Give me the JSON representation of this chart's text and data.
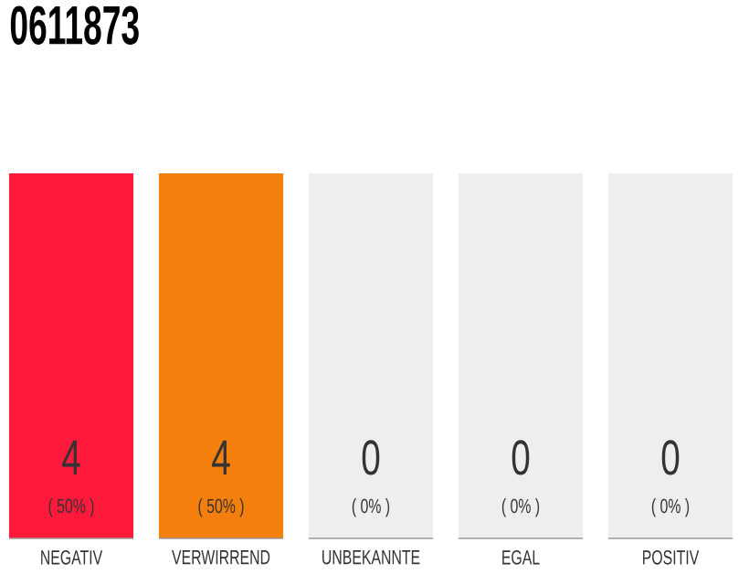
{
  "chart_data": {
    "type": "bar",
    "title": "0611873",
    "categories": [
      "NEGATIV",
      "VERWIRREND",
      "UNBEKANNTE",
      "EGAL",
      "POSITIV"
    ],
    "series": [
      {
        "colors": [
          "#ff1a3c",
          "#f57f0c",
          "#eeeeee",
          "#eeeeee",
          "#eeeeee"
        ],
        "values": [
          50,
          50,
          0,
          0,
          0
        ],
        "value_labels": [
          "( 50% )",
          "( 50% )",
          "( 0% )",
          "( 0% )",
          "( 0% )"
        ]
      },
      {
        "color": "#eeeeee",
        "values": [
          0,
          0,
          50,
          50,
          50
        ]
      }
    ],
    "annotations": [
      "4",
      "4",
      "0",
      "0",
      "0"
    ],
    "tick_labels": "x"
  }
}
